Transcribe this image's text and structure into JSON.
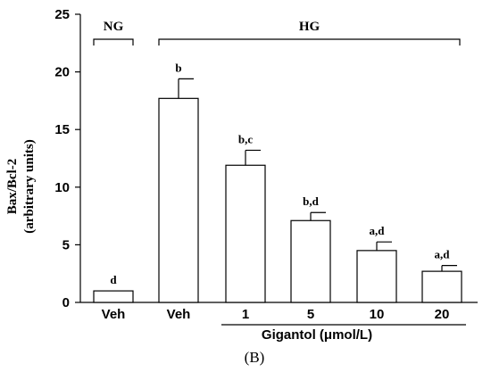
{
  "chart_data": {
    "type": "bar",
    "panel_label": "(B)",
    "ylabel_line1": "Bax/Bcl-2",
    "ylabel_line2": "(arbitrary units)",
    "xlabel": "Gigantol (μmol/L)",
    "ylim": [
      0,
      25
    ],
    "yticks": [
      0,
      5,
      10,
      15,
      20,
      25
    ],
    "categories": [
      "Veh",
      "Veh",
      "1",
      "5",
      "10",
      "20"
    ],
    "values": [
      1.0,
      17.7,
      11.9,
      7.1,
      4.5,
      2.7
    ],
    "errors": [
      0,
      1.7,
      1.3,
      0.7,
      0.75,
      0.5
    ],
    "annotations": [
      "d",
      "b",
      "b,c",
      "b,d",
      "a,d",
      "a,d"
    ],
    "groups": [
      {
        "label": "NG",
        "from": 0,
        "to": 0
      },
      {
        "label": "HG",
        "from": 1,
        "to": 5
      }
    ],
    "xlabel_span": {
      "from": 2,
      "to": 5
    }
  }
}
